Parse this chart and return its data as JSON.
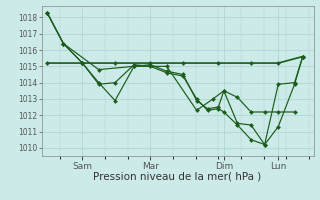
{
  "background_color": "#cceae8",
  "grid_color": "#aad4d0",
  "line_color": "#1a5c1a",
  "xlabel": "Pression niveau de la mer( hPa )",
  "ylim": [
    1009.5,
    1018.7
  ],
  "yticks": [
    1010,
    1011,
    1012,
    1013,
    1014,
    1015,
    1016,
    1017,
    1018
  ],
  "xtick_labels": [
    "Sam",
    "Mar",
    "Dim",
    "Lun"
  ],
  "xtick_positions": [
    0.15,
    0.4,
    0.67,
    0.87
  ],
  "xlim": [
    0.0,
    1.0
  ],
  "s1_x": [
    0.02,
    0.08,
    0.15,
    0.21,
    0.27,
    0.34,
    0.4,
    0.46,
    0.52,
    0.57,
    0.61,
    0.65,
    0.67,
    0.72,
    0.77,
    0.82,
    0.87,
    0.93
  ],
  "s1_y": [
    1018.3,
    1016.4,
    1015.2,
    1014.0,
    1012.9,
    1015.0,
    1015.1,
    1014.7,
    1014.5,
    1012.9,
    1012.4,
    1012.5,
    1013.5,
    1013.1,
    1012.2,
    1012.2,
    1012.2,
    1012.2
  ],
  "s2_x": [
    0.02,
    0.08,
    0.15,
    0.21,
    0.27,
    0.34,
    0.4,
    0.46,
    0.52,
    0.57,
    0.61,
    0.65,
    0.67,
    0.72,
    0.77,
    0.82,
    0.87,
    0.93,
    0.96
  ],
  "s2_y": [
    1018.3,
    1016.4,
    1015.2,
    1013.9,
    1014.0,
    1015.1,
    1015.0,
    1014.6,
    1014.4,
    1013.0,
    1012.3,
    1012.4,
    1012.2,
    1011.4,
    1010.5,
    1010.2,
    1011.3,
    1013.9,
    1015.6
  ],
  "s3_x": [
    0.02,
    0.15,
    0.27,
    0.4,
    0.52,
    0.65,
    0.77,
    0.87,
    0.96
  ],
  "s3_y": [
    1015.2,
    1015.2,
    1015.2,
    1015.2,
    1015.2,
    1015.2,
    1015.2,
    1015.2,
    1015.6
  ],
  "s4_x": [
    0.02,
    0.08,
    0.21,
    0.34,
    0.46,
    0.57,
    0.63,
    0.67,
    0.72,
    0.77,
    0.82,
    0.87,
    0.93,
    0.96
  ],
  "s4_y": [
    1018.3,
    1016.4,
    1014.8,
    1015.0,
    1015.0,
    1012.3,
    1013.0,
    1013.5,
    1011.5,
    1011.4,
    1010.2,
    1013.9,
    1014.0,
    1015.6
  ]
}
